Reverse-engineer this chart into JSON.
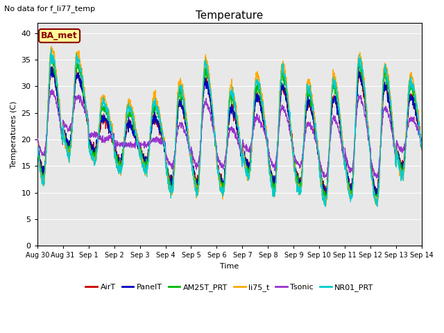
{
  "title": "Temperature",
  "xlabel": "Time",
  "ylabel": "Temperatures (C)",
  "no_data_text": "No data for f_li77_temp",
  "ba_met_label": "BA_met",
  "ylim": [
    0,
    42
  ],
  "yticks": [
    0,
    5,
    10,
    15,
    20,
    25,
    30,
    35,
    40
  ],
  "bg_color": "#e8e8e8",
  "series": [
    "AirT",
    "PanelT",
    "AM25T_PRT",
    "li75_t",
    "Tsonic",
    "NR01_PRT"
  ],
  "colors": [
    "#cc0000",
    "#0000bb",
    "#00bb00",
    "#ffaa00",
    "#9933cc",
    "#00cccc"
  ],
  "tick_labels": [
    "Aug 30",
    "Aug 31",
    "Sep 1",
    "Sep 2",
    "Sep 3",
    "Sep 4",
    "Sep 5",
    "Sep 6",
    "Sep 7",
    "Sep 8",
    "Sep 9",
    "Sep 10",
    "Sep 11",
    "Sep 12",
    "Sep 13",
    "Sep 14"
  ],
  "figsize": [
    6.4,
    4.8
  ],
  "dpi": 100
}
